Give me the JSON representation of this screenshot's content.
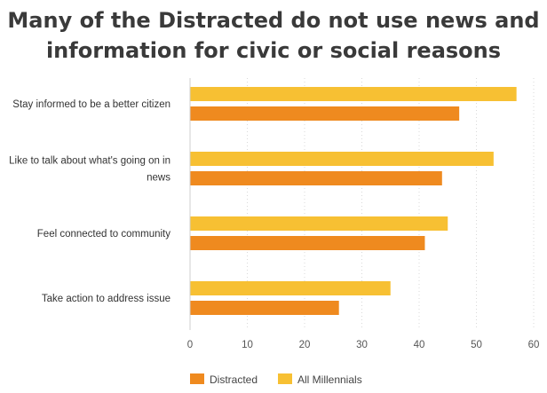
{
  "chart_data": {
    "type": "bar",
    "orientation": "horizontal",
    "title_lines": [
      "Many of the Distracted do not use news and",
      "information for civic or social reasons"
    ],
    "categories": [
      [
        "Stay informed to be a better citizen"
      ],
      [
        "Like to talk about what's going on in",
        "news"
      ],
      [
        "Feel connected to community"
      ],
      [
        "Take action to address issue"
      ]
    ],
    "series": [
      {
        "name": "All Millennials",
        "color": "#f7c033",
        "values": [
          57,
          53,
          45,
          35
        ]
      },
      {
        "name": "Distracted",
        "color": "#ef8a1f",
        "values": [
          47,
          44,
          41,
          26
        ]
      }
    ],
    "legend_order": [
      "Distracted",
      "All Millennials"
    ],
    "xlim": [
      0,
      60
    ],
    "ticks": [
      "0",
      "10",
      "20",
      "30",
      "40",
      "50",
      "60"
    ],
    "grid": true,
    "legend_position": "bottom-left"
  }
}
